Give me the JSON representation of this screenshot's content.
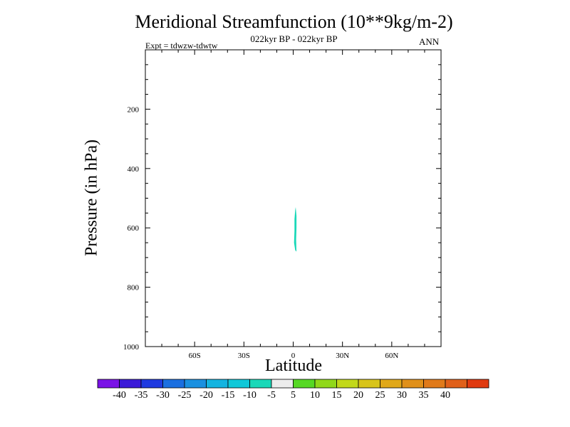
{
  "chart_data": {
    "type": "contour",
    "title": "Meridional Streamfunction (10**9kg/m-2)",
    "subtitle": "022kyr BP - 022kyr BP",
    "left_label": "Expt = tdwzw-tdwtw",
    "right_label": "ANN",
    "xlabel": "Latitude",
    "ylabel": "Pressure (in hPa)",
    "xlim": [
      -90,
      90
    ],
    "ylim": [
      1000,
      0
    ],
    "x_ticks": [
      {
        "value": -60,
        "label": "60S"
      },
      {
        "value": -30,
        "label": "30S"
      },
      {
        "value": 0,
        "label": "0"
      },
      {
        "value": 30,
        "label": "30N"
      },
      {
        "value": 60,
        "label": "60N"
      }
    ],
    "y_ticks": [
      {
        "value": 200,
        "label": "200"
      },
      {
        "value": 400,
        "label": "400"
      },
      {
        "value": 600,
        "label": "600"
      },
      {
        "value": 800,
        "label": "800"
      },
      {
        "value": 1000,
        "label": "1000"
      }
    ],
    "filled_regions": [
      {
        "level_range": [
          -10,
          -5
        ],
        "color": "#1ad8b8",
        "polygon": [
          [
            1.5,
            530
          ],
          [
            2.0,
            560
          ],
          [
            2.0,
            600
          ],
          [
            1.8,
            640
          ],
          [
            2.0,
            680
          ],
          [
            1.2,
            675
          ],
          [
            0.5,
            650
          ],
          [
            0.8,
            610
          ],
          [
            0.8,
            570
          ],
          [
            1.2,
            540
          ]
        ]
      }
    ],
    "colorbar": {
      "colors": [
        "#7a12e6",
        "#3b1ad8",
        "#1f3ae0",
        "#1a6fe0",
        "#1a90e0",
        "#14b4e0",
        "#10c8d8",
        "#1ad8b8",
        "#ececec",
        "#56d824",
        "#90d81a",
        "#c2d81a",
        "#d8c41a",
        "#e0a81a",
        "#e0901a",
        "#e07a1a",
        "#e0601a",
        "#e03a10"
      ],
      "labels": [
        "-40",
        "-35",
        "-30",
        "-25",
        "-20",
        "-15",
        "-10",
        "-5",
        "5",
        "10",
        "15",
        "20",
        "25",
        "30",
        "35",
        "40"
      ]
    }
  }
}
